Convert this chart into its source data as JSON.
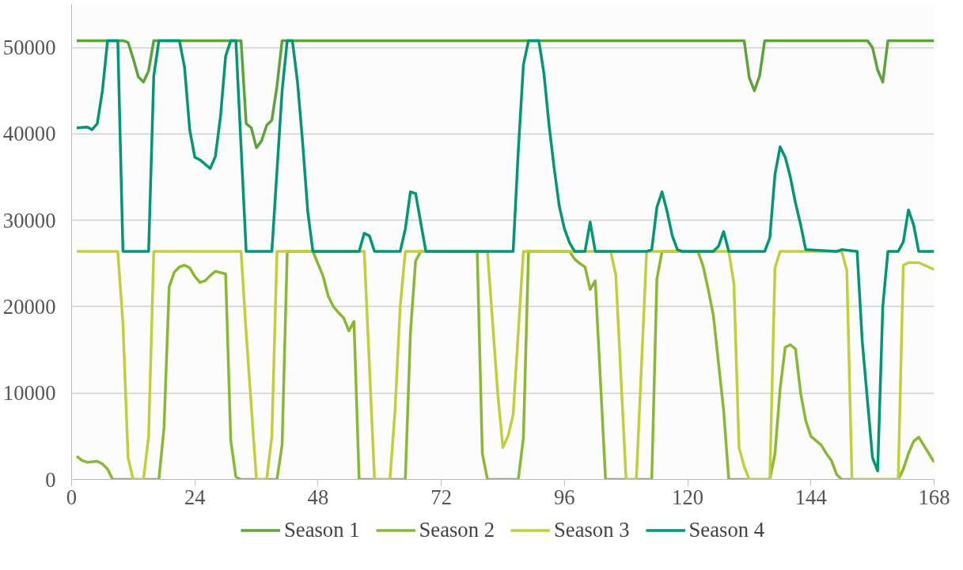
{
  "chart_data": {
    "type": "line",
    "xlim": [
      0,
      168
    ],
    "xticks": [
      0,
      24,
      48,
      72,
      96,
      120,
      144,
      168
    ],
    "ylim": [
      0,
      55000
    ],
    "yticks": [
      0,
      10000,
      20000,
      30000,
      40000,
      50000
    ],
    "grid": "y",
    "legend": "bottom",
    "marker": "none",
    "line_style": "solid",
    "series": [
      {
        "name": "Season 1",
        "color": "#5ea33a",
        "x": [
          1,
          10,
          11,
          12,
          13,
          14,
          15,
          16,
          33,
          34,
          35,
          36,
          37,
          38,
          39,
          40,
          41,
          131,
          132,
          133,
          134,
          135,
          155,
          156,
          157,
          158,
          159,
          168
        ],
        "values": [
          50800,
          50800,
          50600,
          48700,
          46600,
          46000,
          47300,
          50800,
          50800,
          41200,
          40700,
          38400,
          39200,
          41000,
          41600,
          45500,
          50800,
          50800,
          46500,
          45000,
          46700,
          50800,
          50800,
          50000,
          47400,
          46000,
          50800,
          50800
        ]
      },
      {
        "name": "Season 2",
        "color": "#8ab833",
        "x": [
          1,
          2,
          3,
          5,
          6,
          7,
          8,
          17,
          18,
          19,
          20,
          21,
          22,
          23,
          24,
          25,
          26,
          27,
          28,
          30,
          31,
          32,
          33,
          40,
          41,
          42,
          47,
          49,
          50,
          51,
          52,
          53,
          54,
          55,
          56,
          65,
          66,
          67,
          68,
          79,
          80,
          81,
          87,
          88,
          89,
          97,
          98,
          99,
          100,
          101,
          102,
          104,
          113,
          114,
          115,
          122,
          123,
          124,
          125,
          127,
          128,
          136,
          137,
          138,
          139,
          140,
          141,
          142,
          143,
          144,
          146,
          147,
          148,
          149,
          150,
          161,
          162,
          163,
          164,
          165,
          168
        ],
        "values": [
          2700,
          2200,
          2000,
          2100,
          1800,
          1200,
          0,
          0,
          6000,
          22300,
          24000,
          24600,
          24800,
          24500,
          23500,
          22800,
          23000,
          23600,
          24100,
          23800,
          4500,
          300,
          0,
          0,
          4000,
          26400,
          26400,
          23500,
          21200,
          20000,
          19300,
          18700,
          17200,
          18300,
          0,
          0,
          17000,
          25300,
          26400,
          26400,
          3000,
          0,
          0,
          4800,
          26400,
          26400,
          25500,
          25000,
          24600,
          22000,
          23000,
          0,
          0,
          23200,
          26400,
          26400,
          24700,
          22000,
          19000,
          8000,
          0,
          0,
          3000,
          10500,
          15300,
          15600,
          15100,
          10000,
          6800,
          5000,
          4000,
          3000,
          2200,
          600,
          0,
          0,
          1200,
          3000,
          4400,
          4900,
          2000
        ]
      },
      {
        "name": "Season 3",
        "color": "#c0cf3a",
        "x": [
          1,
          9,
          10,
          11,
          12,
          14,
          15,
          16,
          33,
          34,
          36,
          38,
          39,
          40,
          57,
          59,
          62,
          63,
          64,
          65,
          81,
          83,
          84,
          85,
          86,
          87,
          88,
          105,
          106,
          108,
          110,
          112,
          128,
          129,
          130,
          131,
          132,
          136,
          137,
          138,
          150,
          151,
          152,
          161,
          162,
          163,
          165,
          168
        ],
        "values": [
          26400,
          26400,
          18000,
          2500,
          0,
          0,
          5000,
          26400,
          26400,
          17000,
          0,
          0,
          5000,
          26400,
          26400,
          0,
          0,
          8000,
          20000,
          26400,
          26400,
          10000,
          3700,
          5000,
          7500,
          17000,
          26400,
          26400,
          23700,
          0,
          0,
          26400,
          26400,
          22700,
          3700,
          1500,
          0,
          0,
          24500,
          26400,
          26400,
          24200,
          0,
          0,
          24800,
          25100,
          25100,
          24300
        ]
      },
      {
        "name": "Season 4",
        "color": "#029676",
        "x": [
          1,
          3,
          4,
          5,
          6,
          7,
          9,
          10,
          15,
          16,
          17,
          21,
          22,
          23,
          24,
          25,
          27,
          28,
          29,
          30,
          31,
          32,
          34,
          39,
          41,
          42,
          43,
          44,
          45,
          46,
          47,
          56,
          57,
          58,
          59,
          64,
          65,
          66,
          67,
          69,
          86,
          87,
          88,
          89,
          91,
          92,
          93,
          94,
          95,
          96,
          97,
          98,
          100,
          101,
          102,
          112,
          113,
          114,
          115,
          116,
          117,
          118,
          119,
          125,
          126,
          127,
          128,
          135,
          136,
          137,
          138,
          139,
          140,
          141,
          142,
          143,
          149,
          150,
          153,
          154,
          156,
          157,
          158,
          159,
          161,
          162,
          163,
          164,
          165,
          168
        ],
        "values": [
          40700,
          40800,
          40500,
          41200,
          45000,
          50800,
          50800,
          26400,
          26400,
          46700,
          50800,
          50800,
          47700,
          40500,
          37300,
          37000,
          36000,
          37400,
          42000,
          49000,
          50800,
          50800,
          26400,
          26400,
          45000,
          50800,
          50800,
          46000,
          39000,
          31000,
          26400,
          26400,
          28500,
          28200,
          26400,
          26400,
          29000,
          33300,
          33100,
          26400,
          26400,
          38000,
          48000,
          50800,
          50800,
          47000,
          41000,
          36000,
          31600,
          29000,
          27400,
          26400,
          26400,
          29800,
          26400,
          26400,
          26600,
          31500,
          33300,
          31000,
          28200,
          26600,
          26400,
          26400,
          27000,
          28700,
          26400,
          26400,
          28000,
          35300,
          38500,
          37300,
          35000,
          32000,
          29500,
          26600,
          26400,
          26600,
          26400,
          16000,
          2500,
          1000,
          20000,
          26400,
          26400,
          27500,
          31200,
          29500,
          26400,
          26400
        ]
      }
    ]
  }
}
